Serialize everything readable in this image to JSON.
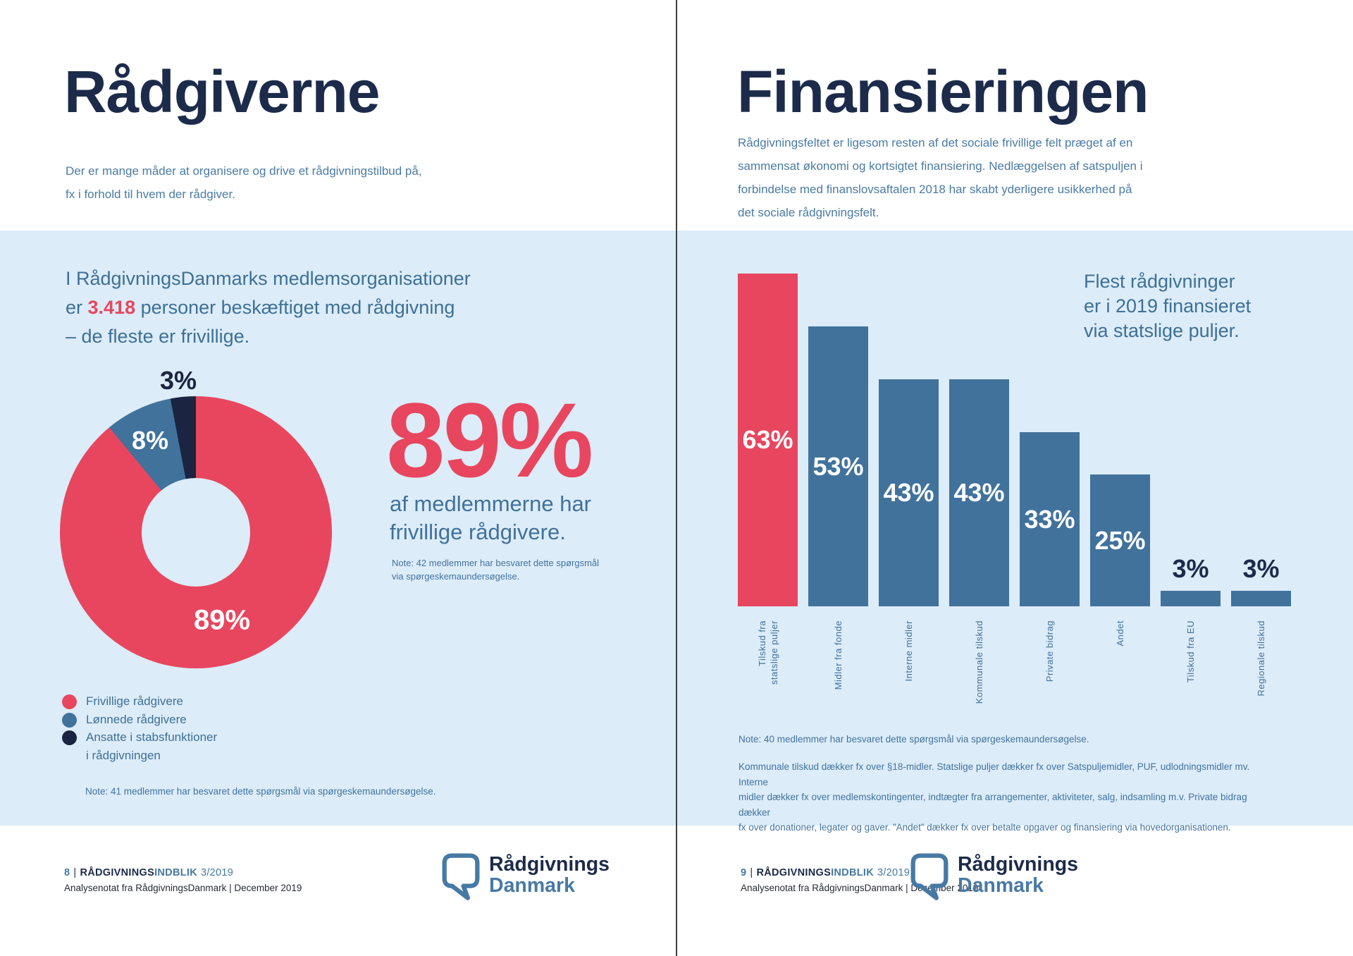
{
  "colors": {
    "navy": "#1C2B4A",
    "steel_blue": "#41729B",
    "red": "#E8465F",
    "dark_slice": "#1B2440",
    "panel_bg": "#DCECF8",
    "intro_text": "#4A7BA6",
    "heading_text": "#3E7096",
    "note_text": "#4273A0"
  },
  "left_page": {
    "title": "Rådgiverne",
    "intro": "Der er mange måder at organisere og drive et rådgivningstilbud på,\nfx i forhold til hvem der rådgiver.",
    "panel_heading": {
      "pre": "I RådgivningsDanmarks medlemsorganisationer\ner ",
      "highlight": "3.418",
      "post": " personer beskæftiget med rådgivning\n– de fleste er frivillige."
    },
    "stat": {
      "value": "89%",
      "caption": "af medlemmerne har\nfrivillige rådgivere.",
      "note": "Note: 42 medlemmer har besvaret dette spørgsmål\nvia spørgeskemaundersøgelse."
    },
    "legend": [
      {
        "label": "Frivillige rådgivere",
        "color": "#E8465F"
      },
      {
        "label": "Lønnede rådgivere",
        "color": "#41729B"
      },
      {
        "label": "Ansatte i stabsfunktioner\ni rådgivningen",
        "color": "#1B2440"
      }
    ],
    "note": "Note: 41 medlemmer har besvaret dette spørgsmål via spørgeskemaundersøgelse.",
    "footer": {
      "page_no": "8",
      "separator": "|",
      "brand_part1": "RÅDGIVNINGS",
      "brand_part2": "INDBLIK",
      "issue": "3/2019",
      "line2": "Analysenotat fra RådgivningsDanmark | December 2019"
    },
    "logo": {
      "line1": "Rådgivnings",
      "line2": "Danmark"
    }
  },
  "right_page": {
    "title": "Finansieringen",
    "intro": "Rådgivningsfeltet er ligesom resten af det sociale frivillige felt præget af en\nsammensat økonomi og kortsigtet finansiering. Nedlæggelsen af satspuljen i\nforbindelse med finanslovsaftalen 2018 har skabt yderligere usikkerhed på\ndet sociale rådgivningsfelt.",
    "lead": "Flest rådgivninger\ner i 2019 finansieret\nvia statslige puljer.",
    "note": "Note: 40 medlemmer har besvaret dette spørgsmål via spørgeskemaundersøgelse.",
    "paragraph": "Kommunale tilskud dækker fx over §18-midler. Statslige puljer dækker fx over Satspuljemidler, PUF, udlodningsmidler mv. Interne\nmidler dækker fx over medlemskontingenter, indtægter fra arrangementer, aktiviteter, salg, indsamling m.v. Private bidrag dækker\nfx over donationer, legater og gaver. ”Andet” dækker fx over betalte opgaver og finansiering via hovedorganisationen.",
    "footer": {
      "page_no": "9",
      "separator": "|",
      "brand_part1": "RÅDGIVNINGS",
      "brand_part2": "INDBLIK",
      "issue": "3/2019",
      "line2": "Analysenotat fra RådgivningsDanmark | December 2019"
    },
    "logo": {
      "line1": "Rådgivnings",
      "line2": "Danmark"
    }
  },
  "chart_data": [
    {
      "type": "pie",
      "donut": true,
      "labels": [
        "Frivillige rådgivere",
        "Lønnede rådgivere",
        "Ansatte i stabsfunktioner i rådgivningen"
      ],
      "values": [
        89,
        8,
        3
      ],
      "unit": "%",
      "colors": [
        "#E8465F",
        "#41729B",
        "#1B2440"
      ],
      "legend_position": "bottom-left"
    },
    {
      "type": "bar",
      "categories": [
        [
          "Tilskud fra",
          "statslige puljer"
        ],
        [
          "Midler fra fonde"
        ],
        [
          "Interne midler"
        ],
        [
          "Kommunale tilskud"
        ],
        [
          "Private bidrag"
        ],
        [
          "Andet"
        ],
        [
          "Tilskud fra EU"
        ],
        [
          "Regionale tilskud"
        ]
      ],
      "values": [
        63,
        53,
        43,
        43,
        33,
        25,
        3,
        3
      ],
      "unit": "%",
      "ylim": [
        0,
        63
      ],
      "gridlines": false,
      "bar_color": "#41729B",
      "highlight_index": 0,
      "highlight_color": "#E8465F",
      "value_label_style": "inside-white, small values above in navy"
    }
  ]
}
